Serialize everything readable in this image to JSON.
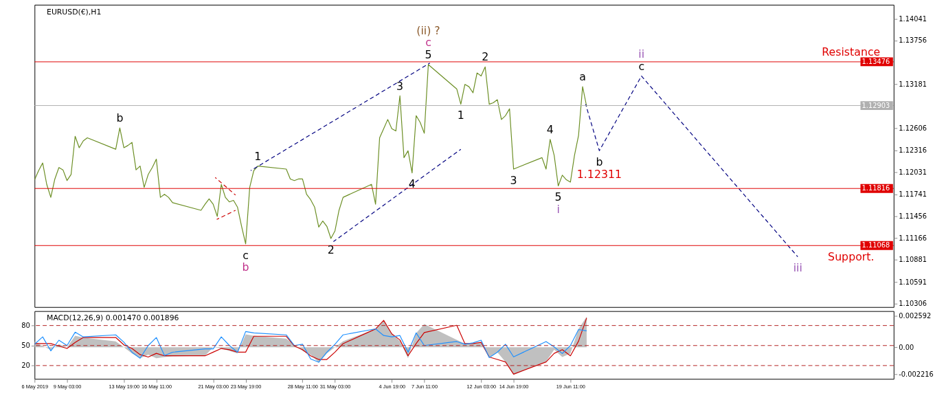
{
  "chart_data": [
    {
      "type": "line",
      "title": "EURUSD(€),H1",
      "tick_labels": "y",
      "grid": false,
      "xlim": [
        "2019-05-06T11:00",
        "2019-07-16T00:00"
      ],
      "ylim": [
        1.10262,
        1.14224
      ],
      "yticks": [
        1.14041,
        1.13756,
        1.13181,
        1.12606,
        1.12316,
        1.12031,
        1.11741,
        1.11456,
        1.11166,
        1.10881,
        1.10591,
        1.10306
      ],
      "x": [
        "2019-05-06T11:00",
        "2019-05-06T19:00",
        "2019-05-07T03:00",
        "2019-05-07T11:00",
        "2019-05-07T19:00",
        "2019-05-08T03:00",
        "2019-05-08T11:00",
        "2019-05-08T19:00",
        "2019-05-09T03:00",
        "2019-05-09T11:00",
        "2019-05-09T19:00",
        "2019-05-10T03:00",
        "2019-05-10T11:00",
        "2019-05-10T19:00",
        "2019-05-13T03:00",
        "2019-05-13T11:00",
        "2019-05-13T19:00",
        "2019-05-14T03:00",
        "2019-05-14T11:00",
        "2019-05-14T19:00",
        "2019-05-15T03:00",
        "2019-05-15T11:00",
        "2019-05-15T19:00",
        "2019-05-16T03:00",
        "2019-05-16T11:00",
        "2019-05-16T19:00",
        "2019-05-17T03:00",
        "2019-05-17T11:00",
        "2019-05-17T19:00",
        "2019-05-20T03:00",
        "2019-05-20T11:00",
        "2019-05-20T19:00",
        "2019-05-21T03:00",
        "2019-05-21T11:00",
        "2019-05-21T19:00",
        "2019-05-22T03:00",
        "2019-05-22T11:00",
        "2019-05-22T19:00",
        "2019-05-23T03:00",
        "2019-05-23T11:00",
        "2019-05-23T19:00",
        "2019-05-24T03:00",
        "2019-05-24T11:00",
        "2019-05-24T19:00",
        "2019-05-27T03:00",
        "2019-05-27T11:00",
        "2019-05-27T19:00",
        "2019-05-28T03:00",
        "2019-05-28T11:00",
        "2019-05-28T19:00",
        "2019-05-29T03:00",
        "2019-05-29T11:00",
        "2019-05-29T19:00",
        "2019-05-30T03:00",
        "2019-05-30T11:00",
        "2019-05-30T19:00",
        "2019-05-31T03:00",
        "2019-05-31T11:00",
        "2019-05-31T19:00",
        "2019-06-03T03:00",
        "2019-06-03T11:00",
        "2019-06-03T19:00",
        "2019-06-04T03:00",
        "2019-06-04T11:00",
        "2019-06-04T19:00",
        "2019-06-05T03:00",
        "2019-06-05T11:00",
        "2019-06-05T19:00",
        "2019-06-06T03:00",
        "2019-06-06T11:00",
        "2019-06-06T19:00",
        "2019-06-07T03:00",
        "2019-06-07T11:00",
        "2019-06-07T19:00",
        "2019-06-10T03:00",
        "2019-06-10T11:00",
        "2019-06-10T19:00",
        "2019-06-11T03:00",
        "2019-06-11T11:00",
        "2019-06-11T19:00",
        "2019-06-12T03:00",
        "2019-06-12T11:00",
        "2019-06-12T19:00",
        "2019-06-13T03:00",
        "2019-06-13T11:00",
        "2019-06-13T19:00",
        "2019-06-14T03:00",
        "2019-06-14T11:00",
        "2019-06-14T19:00",
        "2019-06-17T03:00",
        "2019-06-17T11:00",
        "2019-06-17T19:00",
        "2019-06-18T03:00",
        "2019-06-18T11:00",
        "2019-06-18T19:00",
        "2019-06-19T03:00",
        "2019-06-19T11:00",
        "2019-06-19T19:00",
        "2019-06-20T03:00",
        "2019-06-20T11:00",
        "2019-06-20T19:00"
      ],
      "series": [
        {
          "color": "#6b8e23",
          "values": [
            1.1193,
            1.1205,
            1.1215,
            1.1187,
            1.117,
            1.1194,
            1.1209,
            1.1206,
            1.1192,
            1.12,
            1.125,
            1.1235,
            1.1244,
            1.1248,
            1.1233,
            1.1261,
            1.1235,
            1.1238,
            1.1242,
            1.1206,
            1.1211,
            1.1183,
            1.12,
            1.1209,
            1.122,
            1.117,
            1.1174,
            1.117,
            1.1163,
            1.1153,
            1.1161,
            1.1168,
            1.1161,
            1.1145,
            1.1187,
            1.117,
            1.1164,
            1.1166,
            1.1157,
            1.1132,
            1.1109,
            1.1183,
            1.1205,
            1.1211,
            1.1207,
            1.1194,
            1.1192,
            1.1194,
            1.1194,
            1.1174,
            1.1167,
            1.1157,
            1.1131,
            1.1139,
            1.1132,
            1.1116,
            1.1126,
            1.1153,
            1.117,
            1.1187,
            1.1161,
            1.1248,
            1.126,
            1.1272,
            1.126,
            1.1257,
            1.1303,
            1.1222,
            1.1231,
            1.1202,
            1.1277,
            1.1268,
            1.1254,
            1.1344,
            1.1312,
            1.1292,
            1.1318,
            1.1315,
            1.1307,
            1.1333,
            1.1329,
            1.1341,
            1.1292,
            1.1294,
            1.1298,
            1.1272,
            1.1277,
            1.1286,
            1.1207,
            1.1222,
            1.1207,
            1.1246,
            1.1225,
            1.1185,
            1.1199,
            1.1193,
            1.119,
            1.1225,
            1.1251,
            1.1315,
            1.1289
          ]
        },
        {
          "color": "#000080",
          "line_style": "dashed",
          "x": [
            "2019-05-24T05:00",
            "2019-06-07T22:00"
          ],
          "values": [
            1.1205,
            1.1346
          ]
        },
        {
          "color": "#000080",
          "line_style": "dashed",
          "x": [
            "2019-05-31T00:00",
            "2019-06-10T11:00"
          ],
          "values": [
            1.1112,
            1.1233
          ]
        },
        {
          "color": "#000080",
          "line_style": "dashed",
          "x": [
            "2019-06-20T17:00",
            "2019-06-21T20:00",
            "2019-06-25T07:00",
            "2019-07-08T03:00"
          ],
          "values": [
            1.1292,
            1.12311,
            1.1329,
            1.1092
          ]
        },
        {
          "color": "#cc0000",
          "line_style": "dashed",
          "x": [
            "2019-05-21T07:00",
            "2019-05-22T23:00"
          ],
          "values": [
            1.1196,
            1.1173
          ]
        },
        {
          "color": "#cc0000",
          "line_style": "dashed",
          "x": [
            "2019-05-21T10:00",
            "2019-05-22T23:00"
          ],
          "values": [
            1.1141,
            1.1153
          ]
        }
      ],
      "ref_lines": [
        {
          "axis": "y",
          "value": 1.13476,
          "label": "1.13476",
          "color": "#e00000"
        },
        {
          "axis": "y",
          "value": 1.12903,
          "label": "1.12903",
          "color": "#b0b0b0"
        },
        {
          "axis": "y",
          "value": 1.11816,
          "label": "1.11816",
          "color": "#e00000"
        },
        {
          "axis": "y",
          "value": 1.11068,
          "label": "1.11068",
          "color": "#e00000"
        }
      ],
      "annotations": [
        {
          "text": "b",
          "x": "2019-05-13T11:00",
          "y": 1.1261
        },
        {
          "text": "1",
          "x": "2019-05-24T19:00",
          "y": 1.1211
        },
        {
          "text": "c",
          "x": "2019-05-23T19:00",
          "y": 1.1109
        },
        {
          "text": "b",
          "x": "2019-05-23T19:00",
          "y": 1.1109
        },
        {
          "text": "2",
          "x": "2019-05-30T19:00",
          "y": 1.1116
        },
        {
          "text": "3",
          "x": "2019-06-05T11:00",
          "y": 1.1303
        },
        {
          "text": "4",
          "x": "2019-06-06T11:00",
          "y": 1.1202
        },
        {
          "text": "(ii) ?",
          "x": "2019-06-07T19:00",
          "y": 1.1344
        },
        {
          "text": "c",
          "x": "2019-06-07T19:00",
          "y": 1.1344
        },
        {
          "text": "5",
          "x": "2019-06-07T19:00",
          "y": 1.1344
        },
        {
          "text": "1",
          "x": "2019-06-10T11:00",
          "y": 1.1292
        },
        {
          "text": "2",
          "x": "2019-06-12T11:00",
          "y": 1.1341
        },
        {
          "text": "3",
          "x": "2019-06-14T19:00",
          "y": 1.1207
        },
        {
          "text": "4",
          "x": "2019-06-17T19:00",
          "y": 1.1246
        },
        {
          "text": "5",
          "x": "2019-06-18T11:00",
          "y": 1.1185
        },
        {
          "text": "i",
          "x": "2019-06-18T11:00",
          "y": 1.1185
        },
        {
          "text": "a",
          "x": "2019-06-20T11:00",
          "y": 1.1315
        },
        {
          "text": "b",
          "x": "2019-06-21T20:00",
          "y": 1.12311
        },
        {
          "text": "ii",
          "x": "2019-06-25T07:00",
          "y": 1.1329
        },
        {
          "text": "c",
          "x": "2019-06-25T07:00",
          "y": 1.1329
        },
        {
          "text": "iii",
          "x": "2019-07-08T03:00",
          "y": 1.1092
        },
        {
          "text": "1.12311",
          "x": "2019-06-21T20:00",
          "y": 1.12311
        },
        {
          "text": "Resistance",
          "x": "2019-07-12T12:00",
          "y": 1.13476
        },
        {
          "text": "Support.",
          "x": "2019-07-12T12:00",
          "y": 1.11068
        }
      ]
    },
    {
      "type": "line",
      "title": "MACD(12,26,9) 0.001470 0.001896",
      "grid": false,
      "xlim": [
        "2019-05-06T11:00",
        "2019-07-16T00:00"
      ],
      "ylim": [
        -0.00259,
        0.00296
      ],
      "y2lim": [
        0,
        101.6
      ],
      "yticks": [
        0.002592,
        {
          "value": 0,
          "label": "0.00"
        },
        -0.002216
      ],
      "y2ticks": [
        80,
        50,
        20
      ],
      "xticks": [
        {
          "value": "2019-05-06T11:00",
          "label": "6 May 2019"
        },
        {
          "value": "2019-05-09T03:00",
          "label": "9 May 03:00"
        },
        {
          "value": "2019-05-13T19:00",
          "label": "13 May 19:00"
        },
        {
          "value": "2019-05-16T11:00",
          "label": "16 May 11:00"
        },
        {
          "value": "2019-05-21T03:00",
          "label": "21 May 03:00"
        },
        {
          "value": "2019-05-23T19:00",
          "label": "23 May 19:00"
        },
        {
          "value": "2019-05-28T11:00",
          "label": "28 May 11:00"
        },
        {
          "value": "2019-05-31T03:00",
          "label": "31 May 03:00"
        },
        {
          "value": "2019-06-04T19:00",
          "label": "4 Jun 19:00"
        },
        {
          "value": "2019-06-07T11:00",
          "label": "7 Jun 11:00"
        },
        {
          "value": "2019-06-12T03:00",
          "label": "12 Jun 03:00"
        },
        {
          "value": "2019-06-14T19:00",
          "label": "14 Jun 19:00"
        },
        {
          "value": "2019-06-19T11:00",
          "label": "19 Jun 11:00"
        }
      ],
      "x": [
        "2019-05-06T11:00",
        "2019-05-07T03:00",
        "2019-05-07T19:00",
        "2019-05-08T11:00",
        "2019-05-09T03:00",
        "2019-05-09T19:00",
        "2019-05-10T11:00",
        "2019-05-13T03:00",
        "2019-05-13T19:00",
        "2019-05-14T11:00",
        "2019-05-15T03:00",
        "2019-05-15T19:00",
        "2019-05-16T11:00",
        "2019-05-17T03:00",
        "2019-05-17T19:00",
        "2019-05-20T11:00",
        "2019-05-21T03:00",
        "2019-05-21T19:00",
        "2019-05-22T11:00",
        "2019-05-23T03:00",
        "2019-05-23T19:00",
        "2019-05-24T11:00",
        "2019-05-27T03:00",
        "2019-05-27T19:00",
        "2019-05-28T11:00",
        "2019-05-29T03:00",
        "2019-05-29T19:00",
        "2019-05-30T11:00",
        "2019-05-31T03:00",
        "2019-05-31T19:00",
        "2019-06-03T11:00",
        "2019-06-04T03:00",
        "2019-06-04T19:00",
        "2019-06-05T11:00",
        "2019-06-06T03:00",
        "2019-06-06T19:00",
        "2019-06-07T11:00",
        "2019-06-10T03:00",
        "2019-06-10T19:00",
        "2019-06-11T11:00",
        "2019-06-12T03:00",
        "2019-06-12T19:00",
        "2019-06-13T11:00",
        "2019-06-14T03:00",
        "2019-06-14T19:00",
        "2019-06-17T11:00",
        "2019-06-18T03:00",
        "2019-06-18T19:00",
        "2019-06-19T11:00",
        "2019-06-20T03:00",
        "2019-06-20T19:00"
      ],
      "series": [
        {
          "type": "area",
          "color": "#c0c0c0",
          "values": [
            0.00048,
            0.0001,
            -0.00021,
            0.00026,
            0,
            0.00095,
            0.00079,
            0.00048,
            0,
            -0.0005,
            -0.0009,
            -0.0006,
            -0.0009,
            -0.0008,
            -0.00075,
            -0.00069,
            0,
            -0.0001,
            -0.0003,
            -0.0005,
            0.00106,
            0.00095,
            0.0007,
            0.0002,
            -0.0003,
            -0.0006,
            -0.00127,
            -0.0005,
            0,
            0.0005,
            0.0015,
            0.0022,
            0.0011,
            0.0005,
            -0.0009,
            0.00116,
            0.0019,
            0.0006,
            0.0003,
            0.0003,
            0.00037,
            -0.0008,
            -0.0004,
            -0.0012,
            -0.00227,
            -0.00116,
            -0.0002,
            -0.0008,
            -0.0005,
            0.0015,
            0.0025
          ]
        },
        {
          "color": "#cc0000",
          "values": [
            0.0003,
            0.0003,
            0.0003,
            0.0001,
            -0.0001,
            0.0004,
            0.0008,
            0.0008,
            0.0002,
            -0.0001,
            -0.0006,
            -0.0008,
            -0.0005,
            -0.0007,
            -0.0007,
            -0.0007,
            -0.0004,
            -0.0001,
            -0.0002,
            -0.0004,
            -0.0004,
            0.0009,
            0.0009,
            0.0001,
            -0.0002,
            -0.0007,
            -0.001,
            -0.001,
            -0.0004,
            0.0003,
            0.0015,
            0.0022,
            0.0011,
            0.0006,
            -0.0007,
            0.0003,
            0.0012,
            0.0018,
            0.0003,
            0.0003,
            0.0004,
            -0.0008,
            -0.001,
            -0.0012,
            -0.0022,
            -0.0012,
            -0.0005,
            -0.0002,
            -0.0007,
            0.0005,
            0.0024
          ]
        },
        {
          "color": "#1e90ff",
          "axis": "y2",
          "values": [
            52,
            63,
            42,
            58,
            50,
            70,
            63,
            66,
            55,
            40,
            31,
            50,
            62,
            35,
            40,
            45,
            45,
            63,
            50,
            40,
            71,
            69,
            66,
            50,
            52,
            30,
            25,
            40,
            52,
            66,
            75,
            65,
            63,
            65,
            40,
            69,
            50,
            56,
            52,
            54,
            58,
            32,
            40,
            52,
            33,
            56,
            48,
            38,
            50,
            74,
            72
          ]
        }
      ],
      "ref_lines": [
        {
          "axis": "y2",
          "value": 80,
          "color": "#b22222",
          "line_style": "dashed"
        },
        {
          "axis": "y2",
          "value": 50,
          "color": "#b22222",
          "line_style": "dashed"
        },
        {
          "axis": "y2",
          "value": 20,
          "color": "#b22222",
          "line_style": "dashed"
        }
      ]
    }
  ]
}
